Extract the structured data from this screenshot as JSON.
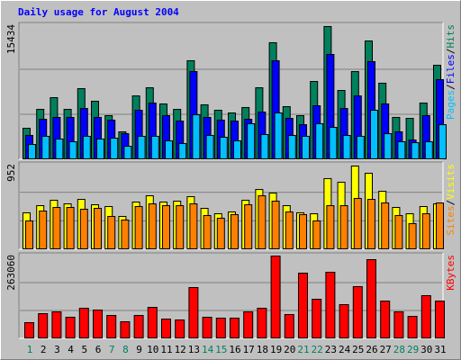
{
  "chart_data": [
    {
      "type": "bar",
      "title": "Daily usage for August 2004",
      "separator": "/",
      "ylim": [
        0,
        15434
      ],
      "yticks": [
        15434
      ],
      "grid_lines": 3,
      "series": [
        {
          "name": "Hits",
          "color": "#00805c",
          "values": [
            3600,
            5760,
            7100,
            5760,
            8130,
            6690,
            5040,
            3190,
            7300,
            8230,
            6380,
            5760,
            11320,
            6280,
            5660,
            5350,
            5970,
            8230,
            13380,
            6070,
            5040,
            8950,
            15230,
            7920,
            10080,
            13580,
            8750,
            4840,
            4730,
            6480,
            10800
          ]
        },
        {
          "name": "Files",
          "color": "#0000ff",
          "values": [
            2780,
            4630,
            4840,
            4840,
            5860,
            4840,
            4530,
            2980,
            5660,
            6480,
            5040,
            4420,
            10080,
            4840,
            4530,
            4420,
            4630,
            5450,
            11320,
            4730,
            4010,
            6170,
            12040,
            5860,
            7300,
            11220,
            6380,
            3190,
            2260,
            5040,
            9160
          ]
        },
        {
          "name": "Pages",
          "color": "#00c0ff",
          "values": [
            1750,
            2680,
            2370,
            2060,
            2680,
            2370,
            2470,
            1540,
            2680,
            2680,
            2160,
            1850,
            5140,
            2780,
            2570,
            2160,
            4120,
            2880,
            5350,
            2780,
            2680,
            4120,
            3700,
            2780,
            2680,
            5660,
            2980,
            2060,
            1950,
            2060,
            4010
          ]
        }
      ]
    },
    {
      "type": "bar",
      "separator": "/",
      "ylim": [
        0,
        952
      ],
      "yticks": [
        952
      ],
      "grid_lines": 3,
      "series": [
        {
          "name": "Visits",
          "color": "#ffff00",
          "values": [
            411,
            491,
            551,
            511,
            561,
            501,
            481,
            371,
            531,
            601,
            531,
            541,
            591,
            461,
            401,
            421,
            551,
            671,
            631,
            491,
            411,
            401,
            792,
            752,
            932,
            852,
            651,
            471,
            401,
            481,
            511
          ]
        },
        {
          "name": "Sites",
          "color": "#ff8000",
          "values": [
            321,
            431,
            471,
            471,
            451,
            461,
            371,
            331,
            481,
            511,
            491,
            491,
            511,
            381,
            351,
            391,
            501,
            601,
            541,
            421,
            391,
            321,
            491,
            491,
            571,
            561,
            521,
            381,
            291,
            401,
            521
          ]
        }
      ]
    },
    {
      "type": "bar",
      "ylim": [
        0,
        263060
      ],
      "yticks": [
        263060
      ],
      "grid_lines": 3,
      "categories": [
        "1",
        "2",
        "3",
        "4",
        "5",
        "6",
        "7",
        "8",
        "9",
        "10",
        "11",
        "12",
        "13",
        "14",
        "15",
        "16",
        "17",
        "18",
        "19",
        "20",
        "21",
        "22",
        "23",
        "24",
        "25",
        "26",
        "27",
        "28",
        "29",
        "30",
        "31"
      ],
      "category_colors": [
        "#00805c",
        "#000000",
        "#000000",
        "#000000",
        "#000000",
        "#000000",
        "#00805c",
        "#00805c",
        "#000000",
        "#000000",
        "#000000",
        "#000000",
        "#000000",
        "#00805c",
        "#00805c",
        "#000000",
        "#000000",
        "#000000",
        "#000000",
        "#000000",
        "#00805c",
        "#00805c",
        "#000000",
        "#000000",
        "#000000",
        "#000000",
        "#000000",
        "#00805c",
        "#00805c",
        "#000000",
        "#000000"
      ],
      "series": [
        {
          "name": "KBytes",
          "color": "#ff0000",
          "values": [
            50900,
            79200,
            84900,
            67900,
            96200,
            90500,
            73500,
            53700,
            73500,
            99000,
            62200,
            59400,
            161200,
            67900,
            65100,
            65100,
            84900,
            96200,
            260200,
            76400,
            206500,
            124500,
            209300,
            107500,
            164100,
            248900,
            118800,
            84900,
            70700,
            135800,
            118800
          ]
        }
      ]
    }
  ]
}
